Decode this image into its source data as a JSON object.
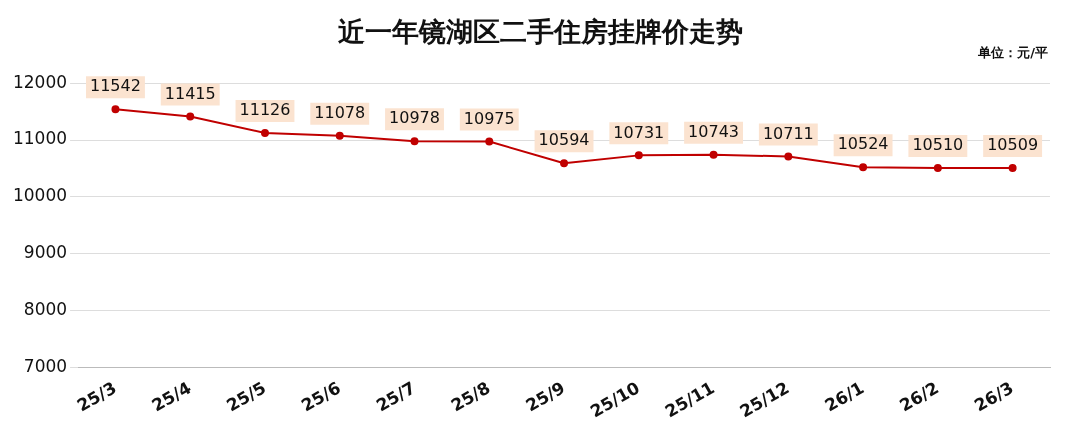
{
  "chart_data": {
    "type": "line",
    "title": "近一年镜湖区二手住房挂牌价走势",
    "annotations": [
      "单位：元/平"
    ],
    "categories": [
      "25/3",
      "25/4",
      "25/5",
      "25/6",
      "25/7",
      "25/8",
      "25/9",
      "25/10",
      "25/11",
      "25/12",
      "26/1",
      "26/2",
      "26/3"
    ],
    "series": [
      {
        "color": "#c00000",
        "values": [
          11542,
          11415,
          11126,
          11078,
          10978,
          10975,
          10594,
          10731,
          10743,
          10711,
          10524,
          10510,
          10509
        ]
      }
    ],
    "ylim": [
      7000,
      12000
    ],
    "yticks": [
      7000,
      8000,
      9000,
      10000,
      11000,
      12000
    ],
    "grid": "y",
    "legend": false,
    "marker": "circle",
    "line_style": "solid",
    "data_labels": true
  }
}
